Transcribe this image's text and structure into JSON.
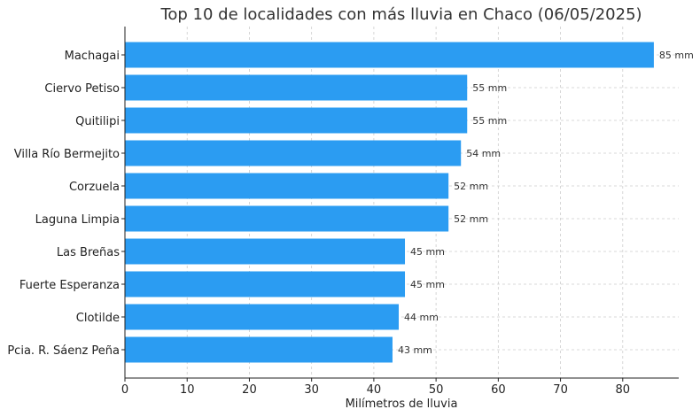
{
  "chart_data": {
    "type": "bar",
    "orientation": "horizontal",
    "title": "Top 10 de localidades con más lluvia en Chaco (06/05/2025)",
    "xlabel": "Milímetros de lluvia",
    "ylabel": "",
    "xlim": [
      0,
      89
    ],
    "x_ticks": [
      0,
      10,
      20,
      30,
      40,
      50,
      60,
      70,
      80
    ],
    "grid": true,
    "bar_color": "#2b9cf2",
    "categories": [
      "Machagai",
      "Ciervo Petiso",
      "Quitilipi",
      "Villa Río Bermejito",
      "Corzuela",
      "Laguna Limpia",
      "Las Breñas",
      "Fuerte Esperanza",
      "Clotilde",
      "Pcia. R. Sáenz Peña"
    ],
    "values": [
      85,
      55,
      55,
      54,
      52,
      52,
      45,
      45,
      44,
      43
    ],
    "data_labels": [
      "85 mm",
      "55 mm",
      "55 mm",
      "54 mm",
      "52 mm",
      "52 mm",
      "45 mm",
      "45 mm",
      "44 mm",
      "43 mm"
    ]
  }
}
